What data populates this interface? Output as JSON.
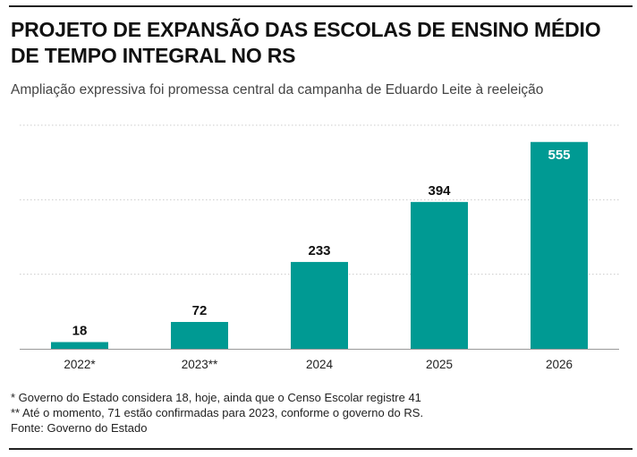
{
  "title": "PROJETO DE EXPANSÃO DAS ESCOLAS DE ENSINO MÉDIO DE TEMPO INTEGRAL NO RS",
  "subtitle": "Ampliação expressiva foi promessa central da campanha de Eduardo Leite à reeleição",
  "footnotes": [
    "* Governo do Estado considera 18, hoje, ainda que o Censo Escolar registre 41",
    "** Até o momento, 71 estão confirmadas para 2023, conforme o governo do RS."
  ],
  "source": "Fonte: Governo do Estado",
  "colors": {
    "bar": "#009a93",
    "grid": "#cccccc",
    "label": "#111111",
    "inside_label": "#ffffff"
  },
  "chart_data": {
    "type": "bar",
    "categories": [
      "2022*",
      "2023**",
      "2024",
      "2025",
      "2026"
    ],
    "values": [
      18,
      72,
      233,
      394,
      555
    ],
    "ylim": [
      0,
      600
    ],
    "grid": true,
    "data_labels": true
  }
}
